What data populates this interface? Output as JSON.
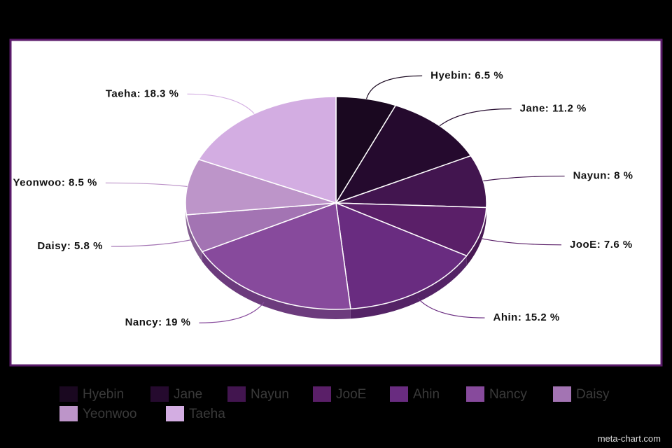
{
  "chart_data": {
    "type": "pie",
    "categories": [
      "Hyebin",
      "Jane",
      "Nayun",
      "JooE",
      "Ahin",
      "Nancy",
      "Daisy",
      "Yeonwoo",
      "Taeha"
    ],
    "values": [
      6.5,
      11.2,
      8,
      7.6,
      15.2,
      19,
      5.8,
      8.5,
      18.3
    ],
    "value_labels": [
      "Hyebin: 6.5 %",
      "Jane: 11.2 %",
      "Nayun: 8 %",
      "JooE: 7.6 %",
      "Ahin: 15.2 %",
      "Nancy: 19 %",
      "Daisy: 5.8 %",
      "Yeonwoo: 8.5 %",
      "Taeha: 18.3 %"
    ],
    "colors": [
      "#1a0820",
      "#250a2e",
      "#42154f",
      "#5a1f68",
      "#692c80",
      "#874a9c",
      "#a374b3",
      "#bd95c9",
      "#d3ade2"
    ],
    "legend": "bottom",
    "watermark": "meta-chart.com"
  }
}
